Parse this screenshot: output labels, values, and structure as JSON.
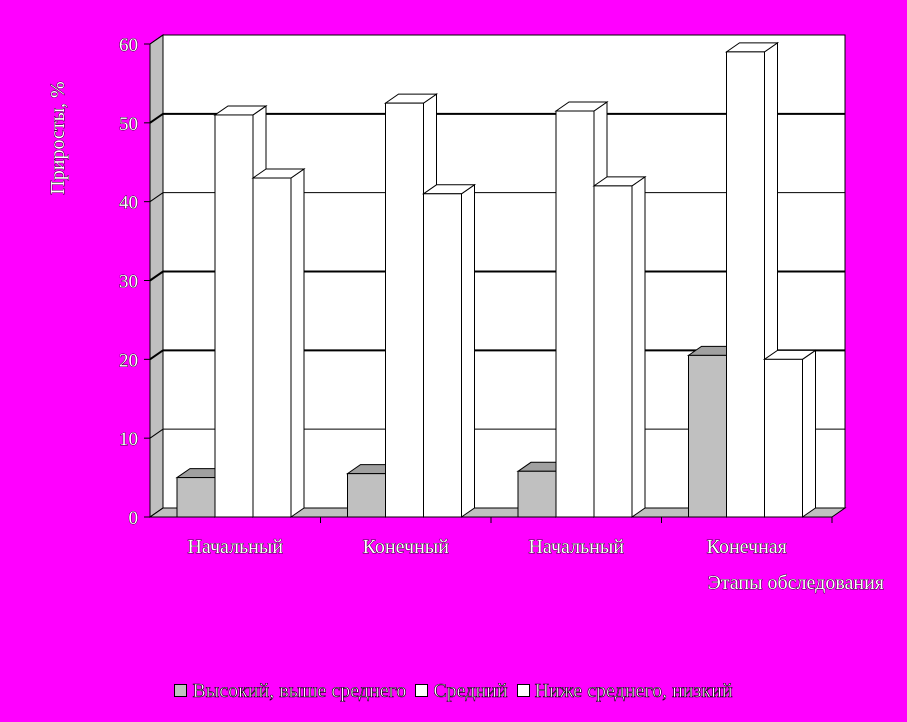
{
  "chart_data": {
    "type": "bar",
    "categories": [
      "Начальный",
      "Конечный",
      "Начальный",
      "Конечная"
    ],
    "series": [
      {
        "name": "Высокий, выше среднего",
        "values": [
          5,
          5.5,
          5.8,
          20.5
        ],
        "color": "#c0c0c0"
      },
      {
        "name": "Средний",
        "values": [
          51,
          52.5,
          51.5,
          59
        ],
        "color": "#ffffff"
      },
      {
        "name": "Ниже среднего, низкий",
        "values": [
          43,
          41,
          42,
          20
        ],
        "color": "#ffffff"
      }
    ],
    "xlabel": "Этапы обследования",
    "ylabel": "Приросты, %",
    "ylim": [
      0,
      60
    ],
    "yticks": [
      "0",
      "10",
      "20",
      "30",
      "40",
      "50",
      "60"
    ],
    "grid": true,
    "legend_position": "bottom",
    "background": "#ff00ff"
  }
}
